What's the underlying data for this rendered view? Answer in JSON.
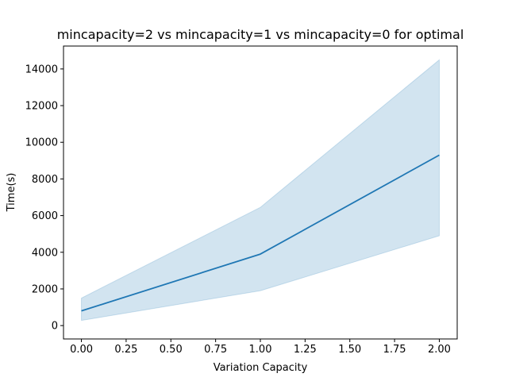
{
  "chart_data": {
    "type": "line",
    "title": "mincapacity=2 vs mincapacity=1 vs mincapacity=0 for optimal",
    "xlabel": "Variation Capacity",
    "ylabel": "Time(s)",
    "xlim": [
      -0.1,
      2.1
    ],
    "ylim": [
      -730,
      15250
    ],
    "x_ticks": [
      0.0,
      0.25,
      0.5,
      0.75,
      1.0,
      1.25,
      1.5,
      1.75,
      2.0
    ],
    "x_tick_labels": [
      "0.00",
      "0.25",
      "0.50",
      "0.75",
      "1.00",
      "1.25",
      "1.50",
      "1.75",
      "2.00"
    ],
    "y_ticks": [
      0,
      2000,
      4000,
      6000,
      8000,
      10000,
      12000,
      14000
    ],
    "y_tick_labels": [
      "0",
      "2000",
      "4000",
      "6000",
      "8000",
      "10000",
      "12000",
      "14000"
    ],
    "grid": false,
    "series": [
      {
        "x": [
          0,
          1,
          2
        ],
        "y": [
          800,
          3900,
          9300
        ],
        "lower": [
          280,
          1900,
          4900
        ],
        "upper": [
          1500,
          6450,
          14500
        ],
        "color": "#1f77b4",
        "band_color": "#1f77b4",
        "band_opacity": 0.2
      }
    ]
  }
}
